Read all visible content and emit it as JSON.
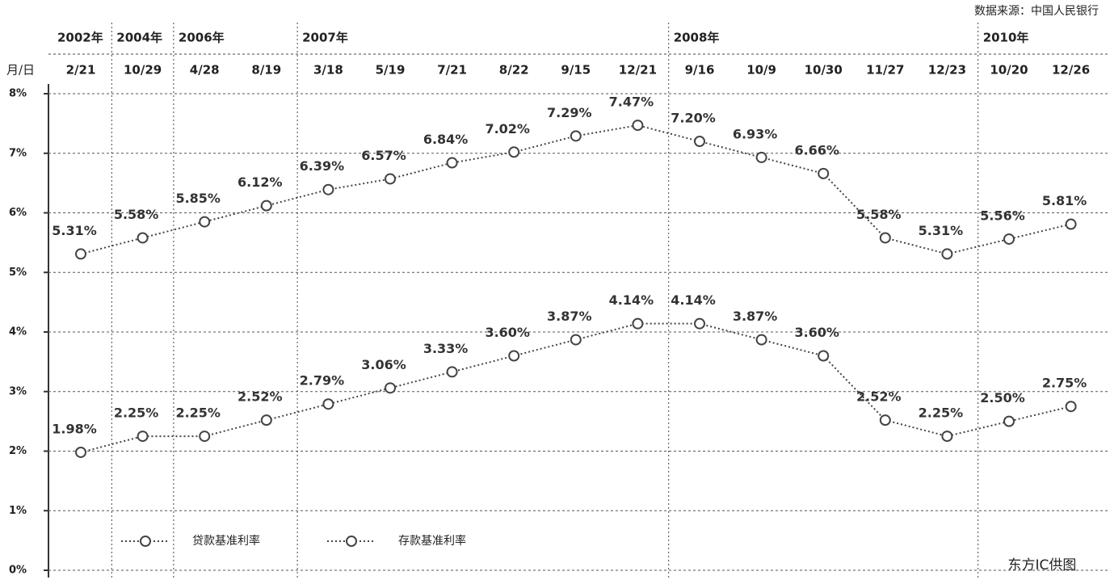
{
  "chart_data": {
    "type": "line",
    "source": "数据来源：中国人民银行",
    "date_axis_label": "月/日",
    "years": [
      "2002年",
      "2004年",
      "2006年",
      null,
      "2007年",
      null,
      null,
      null,
      null,
      null,
      "2008年",
      null,
      null,
      null,
      null,
      "2010年",
      null
    ],
    "categories": [
      "2/21",
      "10/29",
      "4/28",
      "8/19",
      "3/18",
      "5/19",
      "7/21",
      "8/22",
      "9/15",
      "12/21",
      "9/16",
      "10/9",
      "10/30",
      "11/27",
      "12/23",
      "10/20",
      "12/26"
    ],
    "series": [
      {
        "name": "贷款基准利率",
        "color": "#444444",
        "values": [
          5.31,
          5.58,
          5.85,
          6.12,
          6.39,
          6.57,
          6.84,
          7.02,
          7.29,
          7.47,
          7.2,
          6.93,
          6.66,
          5.58,
          5.31,
          5.56,
          5.81
        ],
        "value_labels": [
          "5.31%",
          "5.58%",
          "5.85%",
          "6.12%",
          "6.39%",
          "6.57%",
          "6.84%",
          "7.02%",
          "7.29%",
          "7.47%",
          "7.20%",
          "6.93%",
          "6.66%",
          "5.58%",
          "5.31%",
          "5.56%",
          "5.81%"
        ]
      },
      {
        "name": "存款基准利率",
        "color": "#444444",
        "values": [
          1.98,
          2.25,
          2.25,
          2.52,
          2.79,
          3.06,
          3.33,
          3.6,
          3.87,
          4.14,
          4.14,
          3.87,
          3.6,
          2.52,
          2.25,
          2.5,
          2.75
        ],
        "value_labels": [
          "1.98%",
          "2.25%",
          "2.25%",
          "2.52%",
          "2.79%",
          "3.06%",
          "3.33%",
          "3.60%",
          "3.87%",
          "4.14%",
          "4.14%",
          "3.87%",
          "3.60%",
          "2.52%",
          "2.25%",
          "2.50%",
          "2.75%"
        ]
      }
    ],
    "ylim": [
      0,
      8
    ],
    "yticks": [
      {
        "value": 0,
        "label": "0%"
      },
      {
        "value": 1,
        "label": "1%"
      },
      {
        "value": 2,
        "label": "2%"
      },
      {
        "value": 3,
        "label": "3%"
      },
      {
        "value": 4,
        "label": "4%"
      },
      {
        "value": 5,
        "label": "5%"
      },
      {
        "value": 6,
        "label": "6%"
      },
      {
        "value": 7,
        "label": "7%"
      },
      {
        "value": 8,
        "label": "8%"
      }
    ],
    "grid": true,
    "watermark": "东方IC供图"
  }
}
